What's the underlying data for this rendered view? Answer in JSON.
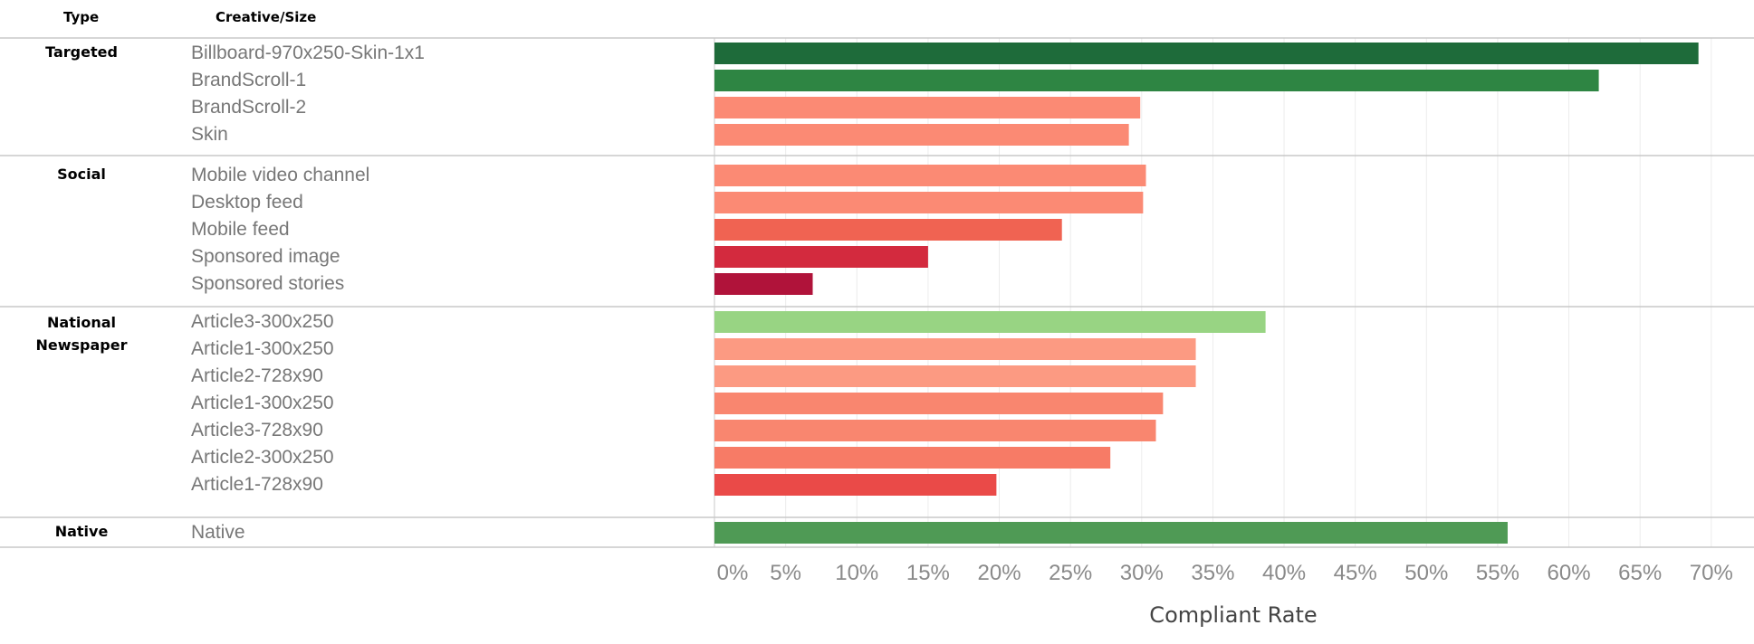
{
  "header": {
    "type_label": "Type",
    "creative_label": "Creative/Size"
  },
  "chart_data": {
    "type": "bar",
    "orientation": "horizontal",
    "xlabel": "Compliant Rate",
    "xlim": [
      0,
      73
    ],
    "xticks": [
      "0%",
      "5%",
      "10%",
      "15%",
      "20%",
      "25%",
      "30%",
      "35%",
      "40%",
      "45%",
      "50%",
      "55%",
      "60%",
      "65%",
      "70%"
    ],
    "groups": [
      {
        "name": "Targeted",
        "items": [
          {
            "label": "Billboard-970x250-Skin-1x1",
            "value": 69.1,
            "color": "#1e6b3a"
          },
          {
            "label": "BrandScroll-1",
            "value": 62.1,
            "color": "#2e8543"
          },
          {
            "label": "BrandScroll-2",
            "value": 29.9,
            "color": "#fb8a74"
          },
          {
            "label": "Skin",
            "value": 29.1,
            "color": "#fb8a74"
          }
        ]
      },
      {
        "name": "Social",
        "items": [
          {
            "label": "Mobile video channel",
            "value": 30.3,
            "color": "#fb8a74"
          },
          {
            "label": "Desktop feed",
            "value": 30.1,
            "color": "#fb8a74"
          },
          {
            "label": "Mobile feed",
            "value": 24.4,
            "color": "#f06352"
          },
          {
            "label": "Sponsored image",
            "value": 15.0,
            "color": "#d32a3e"
          },
          {
            "label": "Sponsored stories",
            "value": 6.9,
            "color": "#b0133a"
          }
        ]
      },
      {
        "name": "National Newspaper",
        "items": [
          {
            "label": "Article3-300x250",
            "value": 38.7,
            "color": "#98d483"
          },
          {
            "label": "Article1-300x250",
            "value": 33.8,
            "color": "#fc9a82"
          },
          {
            "label": "Article2-728x90",
            "value": 33.8,
            "color": "#fc9a82"
          },
          {
            "label": "Article1-300x250",
            "value": 31.5,
            "color": "#f9866f"
          },
          {
            "label": "Article3-728x90",
            "value": 31.0,
            "color": "#f9866f"
          },
          {
            "label": "Article2-300x250",
            "value": 27.8,
            "color": "#f77b66"
          },
          {
            "label": "Article1-728x90",
            "value": 19.8,
            "color": "#ea4a48"
          }
        ]
      },
      {
        "name": "Native",
        "items": [
          {
            "label": "Native",
            "value": 55.7,
            "color": "#4f9a55"
          }
        ]
      }
    ]
  }
}
